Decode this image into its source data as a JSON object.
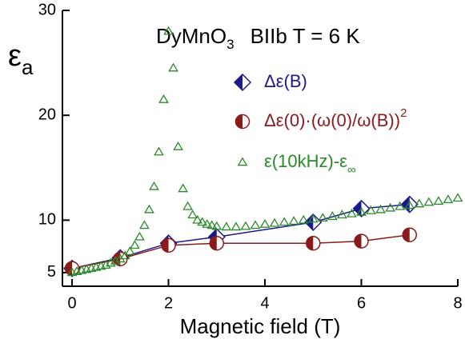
{
  "chart_data": {
    "type": "line",
    "title": [
      "DyMnO",
      "3",
      "BIIb  T = 6 K"
    ],
    "xlabel": "Magnetic field (T)",
    "ylabel": [
      "ε",
      "a"
    ],
    "xlim": [
      -0.2,
      8
    ],
    "xticks": [
      0,
      2,
      4,
      6,
      8
    ],
    "ylim": [
      3.7,
      30
    ],
    "yticks": [
      5,
      10,
      20,
      30
    ],
    "series": [
      {
        "name": [
          "Δε(B)"
        ],
        "color": "#1a1a8c",
        "marker": "diamond",
        "line": true,
        "x": [
          0,
          1,
          2,
          3,
          5,
          6,
          7
        ],
        "values": [
          5.4,
          6.4,
          7.8,
          8.4,
          9.8,
          11.1,
          11.5
        ]
      },
      {
        "name": [
          "Δε(0)·(ω(0)/ω(B))",
          "2"
        ],
        "color": "#8b1a1a",
        "marker": "circle",
        "line": true,
        "x": [
          0,
          1,
          2,
          3,
          5,
          6,
          7
        ],
        "values": [
          5.4,
          6.3,
          7.6,
          7.8,
          7.8,
          8.0,
          8.6
        ]
      },
      {
        "name": [
          "ε(10kHz)-ε",
          "∞"
        ],
        "color": "#2a8a2a",
        "marker": "triangle",
        "line": false,
        "x": [
          0,
          0.1,
          0.2,
          0.3,
          0.4,
          0.5,
          0.6,
          0.7,
          0.8,
          0.9,
          1.0,
          1.1,
          1.2,
          1.3,
          1.4,
          1.5,
          1.6,
          1.7,
          1.8,
          1.9,
          2.0,
          2.1,
          2.2,
          2.3,
          2.4,
          2.5,
          2.6,
          2.7,
          2.8,
          2.9,
          3.0,
          3.2,
          3.4,
          3.6,
          3.8,
          4.0,
          4.2,
          4.4,
          4.6,
          4.8,
          5.0,
          5.2,
          5.4,
          5.6,
          5.8,
          6.0,
          6.2,
          6.4,
          6.6,
          6.8,
          7.0,
          7.2,
          7.4,
          7.6,
          7.8,
          8.0
        ],
        "values": [
          5.0,
          5.1,
          5.2,
          5.3,
          5.4,
          5.5,
          5.6,
          5.7,
          5.9,
          6.1,
          6.3,
          6.6,
          7.0,
          7.6,
          8.4,
          9.5,
          11.0,
          13.2,
          16.5,
          21.5,
          28.0,
          24.5,
          17.0,
          13.0,
          11.3,
          10.5,
          10.0,
          9.8,
          9.6,
          9.5,
          9.4,
          9.35,
          9.35,
          9.4,
          9.5,
          9.6,
          9.7,
          9.8,
          9.9,
          10.0,
          10.1,
          10.2,
          10.35,
          10.5,
          10.6,
          10.75,
          10.9,
          11.0,
          11.15,
          11.3,
          11.4,
          11.55,
          11.7,
          11.8,
          11.95,
          12.1
        ]
      }
    ]
  }
}
